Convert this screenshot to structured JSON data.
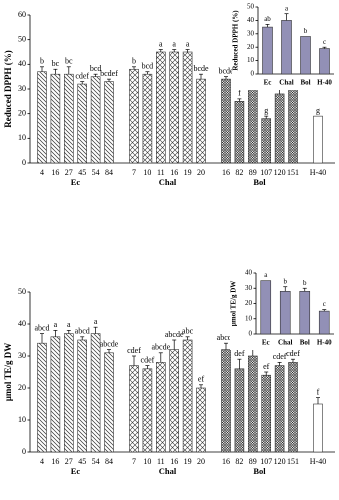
{
  "chart_data": [
    {
      "type": "bar",
      "y_label": "Reduced DPPH (%)",
      "ylim": [
        0,
        60
      ],
      "yticks": [
        0,
        10,
        20,
        30,
        40,
        50,
        60
      ],
      "groups": [
        {
          "name": "Ec",
          "pattern": "hatch",
          "categories": [
            "4",
            "16",
            "27",
            "45",
            "54",
            "84"
          ],
          "values": [
            37,
            36,
            36,
            32,
            35,
            33
          ],
          "errors": [
            2,
            2,
            3,
            1,
            1,
            1
          ],
          "letters": [
            "b",
            "bc",
            "bc",
            "cdef",
            "bcd",
            "bcdef"
          ]
        },
        {
          "name": "Chal",
          "pattern": "cross",
          "categories": [
            "7",
            "10",
            "11",
            "16",
            "19",
            "20"
          ],
          "values": [
            38,
            36,
            45,
            45,
            45,
            34
          ],
          "errors": [
            1,
            1,
            1,
            1,
            1,
            2
          ],
          "letters": [
            "b",
            "bcd",
            "a",
            "a",
            "a",
            "bcde"
          ]
        },
        {
          "name": "Bol",
          "pattern": "dense",
          "categories": [
            "16",
            "82",
            "89",
            "107",
            "120",
            "151"
          ],
          "values": [
            34,
            25,
            31,
            18,
            28,
            32
          ],
          "errors": [
            1,
            1,
            1,
            1,
            2,
            1
          ],
          "letters": [
            "bcde",
            "f",
            "def",
            "g",
            "ef",
            "cdef"
          ]
        },
        {
          "name": "",
          "pattern": "none",
          "categories": [
            "H-40"
          ],
          "values": [
            19
          ],
          "errors": [
            0
          ],
          "letters": [
            "g"
          ]
        }
      ]
    },
    {
      "type": "bar",
      "y_label": "Reduced DPPH (%)",
      "ylim": [
        0,
        50
      ],
      "yticks": [
        0,
        10,
        20,
        30,
        40,
        50
      ],
      "color": "#9290b6",
      "categories": [
        "Ec",
        "Chal",
        "Bol",
        "H-40"
      ],
      "values": [
        35,
        40,
        28,
        19
      ],
      "errors": [
        2,
        5,
        0,
        1
      ],
      "letters": [
        "ab",
        "a",
        "b",
        "c"
      ]
    },
    {
      "type": "bar",
      "y_label": "µmol TE/g DW",
      "ylim": [
        0,
        50
      ],
      "yticks": [
        0,
        10,
        20,
        30,
        40,
        50
      ],
      "groups": [
        {
          "name": "Ec",
          "pattern": "hatch",
          "categories": [
            "4",
            "16",
            "27",
            "45",
            "54",
            "84"
          ],
          "values": [
            34,
            36,
            37,
            35,
            37,
            31
          ],
          "errors": [
            3,
            2,
            1,
            1,
            2,
            1
          ],
          "letters": [
            "abcd",
            "a",
            "a",
            "abcd",
            "a",
            "abcde"
          ]
        },
        {
          "name": "Chal",
          "pattern": "cross",
          "categories": [
            "7",
            "10",
            "11",
            "16",
            "19",
            "20"
          ],
          "values": [
            27,
            26,
            28,
            32,
            35,
            20
          ],
          "errors": [
            3,
            1,
            3,
            3,
            1,
            1
          ],
          "letters": [
            "cdef",
            "cdef",
            "abcde",
            "abcde",
            "abc",
            "ef"
          ]
        },
        {
          "name": "Bol",
          "pattern": "dense",
          "categories": [
            "16",
            "82",
            "89",
            "107",
            "120",
            "151"
          ],
          "values": [
            32,
            26,
            30,
            24,
            27,
            28
          ],
          "errors": [
            2,
            3,
            3,
            1,
            1,
            1
          ],
          "letters": [
            "abcde",
            "def",
            "abcde",
            "ef",
            "cdef",
            "cdef"
          ]
        },
        {
          "name": "",
          "pattern": "none",
          "categories": [
            "H-40"
          ],
          "values": [
            15
          ],
          "errors": [
            2
          ],
          "letters": [
            "f"
          ]
        }
      ]
    },
    {
      "type": "bar",
      "y_label": "µmol TE/g DW",
      "ylim": [
        0,
        40
      ],
      "yticks": [
        0,
        10,
        20,
        30,
        40
      ],
      "color": "#9290b6",
      "categories": [
        "Ec",
        "Chal",
        "Bol",
        "H-40"
      ],
      "values": [
        35,
        28,
        28,
        15
      ],
      "errors": [
        0,
        3,
        2,
        1
      ],
      "letters": [
        "a",
        "b",
        "b",
        "c"
      ]
    }
  ]
}
